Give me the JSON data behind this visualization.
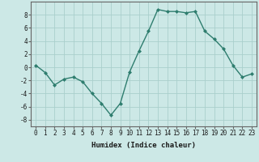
{
  "x": [
    0,
    1,
    2,
    3,
    4,
    5,
    6,
    7,
    8,
    9,
    10,
    11,
    12,
    13,
    14,
    15,
    16,
    17,
    18,
    19,
    20,
    21,
    22,
    23
  ],
  "y": [
    0.3,
    -0.8,
    -2.7,
    -1.8,
    -1.5,
    -2.2,
    -4.0,
    -5.5,
    -7.3,
    -5.5,
    -0.7,
    2.5,
    5.5,
    8.8,
    8.5,
    8.5,
    8.3,
    8.5,
    5.5,
    4.3,
    2.8,
    0.3,
    -1.5,
    -1.0
  ],
  "line_color": "#2e7d6e",
  "marker": "D",
  "marker_size": 2.0,
  "linewidth": 1.0,
  "xlabel": "Humidex (Indice chaleur)",
  "xlim": [
    -0.5,
    23.5
  ],
  "ylim": [
    -9,
    10
  ],
  "yticks": [
    -8,
    -6,
    -4,
    -2,
    0,
    2,
    4,
    6,
    8
  ],
  "xticks": [
    0,
    1,
    2,
    3,
    4,
    5,
    6,
    7,
    8,
    9,
    10,
    11,
    12,
    13,
    14,
    15,
    16,
    17,
    18,
    19,
    20,
    21,
    22,
    23
  ],
  "bg_color": "#cce8e6",
  "grid_color": "#aacfcc",
  "xlabel_fontsize": 6.5,
  "tick_fontsize": 5.5
}
